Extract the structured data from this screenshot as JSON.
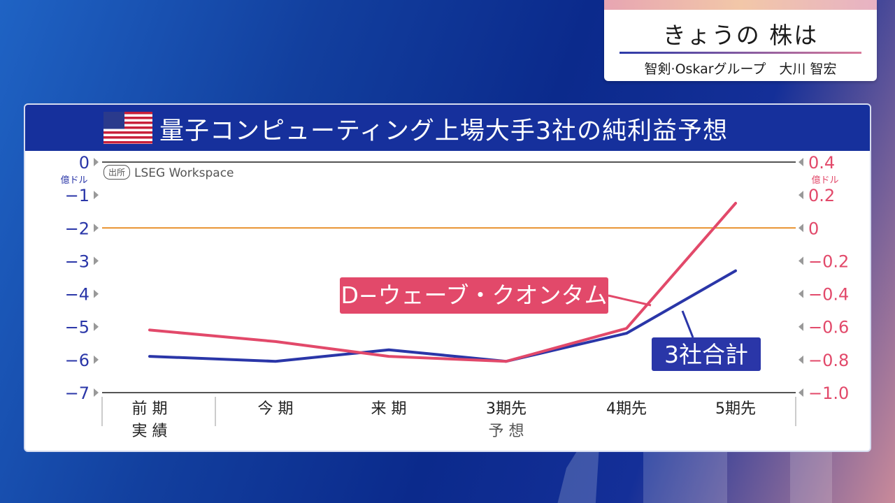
{
  "caption": {
    "title": "きょうの 株は",
    "subtitle": "智剣·Oskarグループ　大川 智宏"
  },
  "panel": {
    "title": "量子コンピューティング上場大手3社の純利益予想",
    "source_tag": "出所",
    "source": "LSEG Workspace",
    "flag_icon": "us-flag-icon"
  },
  "chart_data": {
    "type": "line",
    "categories": [
      "前 期\n実 績",
      "今 期",
      "来 期",
      "3期先",
      "4期先",
      "5期先"
    ],
    "category_group_label": "予 想",
    "left_axis": {
      "unit": "億ドル",
      "ticks": [
        "0",
        "−1",
        "−2",
        "−3",
        "−4",
        "−5",
        "−6",
        "−7"
      ],
      "range": [
        -7,
        0
      ]
    },
    "right_axis": {
      "unit": "億ドル",
      "ticks": [
        "0.4",
        "0.2",
        "0",
        "−0.2",
        "−0.4",
        "−0.6",
        "−0.8",
        "−1.0"
      ],
      "range": [
        -1.0,
        0.4
      ]
    },
    "reference_line": {
      "axis": "left",
      "value": -2,
      "color": "#e8912c"
    },
    "series": [
      {
        "name": "3社合計",
        "axis": "left",
        "color": "#2a36a8",
        "values": [
          -5.9,
          -6.05,
          -5.7,
          -6.05,
          -5.2,
          -3.3
        ]
      },
      {
        "name": "D−ウェーブ・クオンタム",
        "axis": "right",
        "color": "#e2496a",
        "values": [
          -0.62,
          -0.69,
          -0.78,
          -0.81,
          -0.61,
          0.15
        ]
      }
    ],
    "colors": {
      "left_axis": "#2a36a8",
      "right_axis": "#e2496a",
      "header": "#16309c"
    }
  }
}
